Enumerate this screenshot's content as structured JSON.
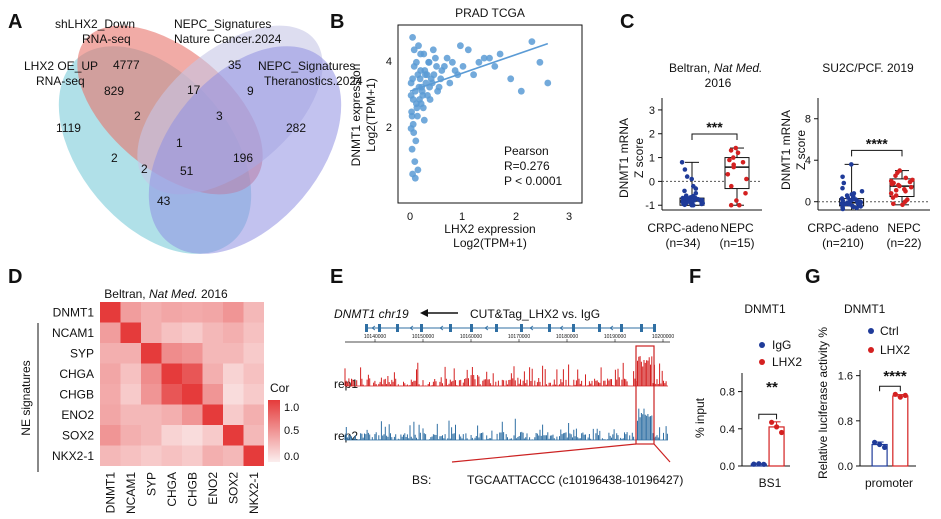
{
  "panels": {
    "A": {
      "label": "A",
      "sets": [
        "shLHX2_Down RNA-seq",
        "NEPC_Signatures Nature Cancer.2024",
        "LHX2 OE_UP RNA-seq",
        "NEPC_Signatures Theranostics.2024"
      ],
      "set_lines": [
        [
          "shLHX2_Down",
          "RNA-seq"
        ],
        [
          "NEPC_Signatures",
          "Nature Cancer.2024"
        ],
        [
          "LHX2 OE_UP",
          "RNA-seq"
        ],
        [
          "NEPC_Signatures",
          "Theranostics.2024"
        ]
      ],
      "set_colors": [
        "#e8736b",
        "#c6c6e6",
        "#6fc7d6",
        "#8f8fe2"
      ],
      "counts": [
        "4777",
        "35",
        "1119",
        "282",
        "829",
        "17",
        "9",
        "2",
        "3",
        "1",
        "196",
        "2",
        "2",
        "51",
        "43"
      ]
    },
    "B": {
      "label": "B",
      "title": "PRAD TCGA",
      "ylabel": [
        "DNMT1 expression",
        "Log2(TPM+1)"
      ],
      "xlabel": [
        "LHX2 expression",
        "Log2(TPM+1)"
      ],
      "xticks": [
        "0",
        "1",
        "2",
        "3"
      ],
      "yticks": [
        "2",
        "4"
      ],
      "stats": [
        "Pearson",
        "R=0.276",
        "P < 0.0001"
      ],
      "chart_data": {
        "type": "scatter",
        "title": "PRAD TCGA",
        "xlim": [
          0,
          3
        ],
        "ylim": [
          0.5,
          4.8
        ],
        "points_description_color": "#5b9bd5",
        "fit_line": {
          "x": [
            0,
            2.6
          ],
          "y": [
            3.2,
            4.35
          ]
        },
        "x": [
          0.02,
          0.03,
          0.05,
          0.06,
          0.08,
          0.1,
          0.12,
          0.15,
          0.18,
          0.2,
          0.22,
          0.25,
          0.28,
          0.3,
          0.33,
          0.36,
          0.4,
          0.45,
          0.5,
          0.55,
          0.6,
          0.7,
          0.8,
          0.9,
          1.0,
          1.1,
          1.3,
          1.5,
          1.7,
          1.9,
          2.1,
          2.3,
          2.45,
          2.6,
          0.04,
          0.07,
          0.09,
          0.11,
          0.14,
          0.17,
          0.21,
          0.24,
          0.27,
          0.32,
          0.38,
          0.42,
          0.48,
          0.52,
          0.58,
          0.65,
          0.75,
          0.85,
          0.95,
          1.2,
          1.4,
          1.6,
          0.05,
          0.08,
          0.12,
          0.16,
          0.2,
          0.26,
          0.35,
          0.44,
          0.05,
          0.1,
          0.15,
          0.02,
          0.06,
          0.13,
          0.19,
          0.23,
          0.29,
          0.37,
          0.02,
          0.04
        ],
        "y": [
          3.1,
          2.7,
          3.5,
          2.4,
          3.8,
          3.2,
          2.9,
          3.6,
          3.0,
          4.1,
          3.3,
          2.8,
          3.7,
          3.4,
          3.1,
          3.9,
          3.5,
          3.6,
          3.8,
          3.3,
          3.7,
          4.0,
          3.9,
          3.6,
          3.8,
          4.2,
          3.9,
          4.0,
          4.1,
          3.5,
          3.2,
          4.4,
          3.9,
          3.4,
          1.8,
          2.2,
          1.5,
          2.0,
          2.6,
          3.3,
          2.9,
          3.1,
          2.5,
          3.6,
          3.0,
          3.4,
          4.0,
          3.2,
          3.5,
          3.8,
          3.4,
          3.7,
          4.3,
          3.6,
          4.0,
          3.8,
          4.5,
          4.2,
          3.9,
          4.3,
          3.7,
          4.1,
          3.9,
          4.2,
          1.2,
          1.1,
          1.3,
          3.4,
          3.0,
          2.8,
          3.5,
          3.2,
          3.6,
          3.3,
          2.3,
          2.6
        ]
      }
    },
    "C": {
      "label": "C",
      "left": {
        "title": [
          "Beltran, ",
          "Nat Med.",
          "2016"
        ],
        "ylabel": [
          "DNMT1 mRNA",
          "Z score"
        ],
        "yticks": [
          "-1",
          "0",
          "1",
          "2",
          "3"
        ],
        "groups": [
          "CRPC-adeno",
          "NEPC"
        ],
        "ns": [
          "(n=34)",
          "(n=15)"
        ],
        "sig": "***",
        "chart_data": {
          "type": "box",
          "categories": [
            "CRPC-adeno",
            "NEPC"
          ],
          "ylim": [
            -1.2,
            3.5
          ],
          "box_colors": [
            "#1f3b99",
            "#d42020"
          ],
          "median": [
            -0.82,
            0.6
          ],
          "q1": [
            -1.0,
            -0.3
          ],
          "q3": [
            -0.7,
            1.0
          ],
          "whisker_min": [
            -1.0,
            -1.0
          ],
          "whisker_max": [
            0.8,
            1.4
          ],
          "points": [
            [
              -1,
              -1,
              -0.95,
              -0.9,
              -0.9,
              -0.85,
              -0.85,
              -0.8,
              -0.8,
              -0.8,
              -0.75,
              -0.75,
              -0.7,
              -0.7,
              -0.65,
              -0.6,
              -0.5,
              -0.4,
              -0.2,
              0.1,
              0.5,
              0.8,
              -0.95,
              -0.9,
              -0.88,
              -0.83,
              -0.78,
              -0.72,
              -0.68,
              -0.62,
              -0.3,
              0.2,
              -0.98,
              -0.92
            ],
            [
              1.4,
              1.3,
              1.2,
              1.0,
              0.9,
              0.8,
              0.7,
              0.6,
              0.3,
              0.1,
              -0.2,
              -0.5,
              -0.8,
              -1.0,
              -1.0
            ]
          ]
        }
      },
      "right": {
        "title": "SU2C/PCF. 2019",
        "ylabel": [
          "DNMT1 mRNA",
          "Z score"
        ],
        "yticks": [
          "0",
          "4",
          "8"
        ],
        "groups": [
          "CRPC-adeno",
          "NEPC"
        ],
        "ns": [
          "(n=210)",
          "(n=22)"
        ],
        "sig": "****",
        "chart_data": {
          "type": "box",
          "categories": [
            "CRPC-adeno",
            "NEPC"
          ],
          "ylim": [
            -0.8,
            10
          ],
          "box_colors": [
            "#1f3b99",
            "#d42020"
          ],
          "median": [
            -0.1,
            1.5
          ],
          "q1": [
            -0.4,
            0.5
          ],
          "q3": [
            0.3,
            2.2
          ],
          "whisker_min": [
            -0.8,
            -0.3
          ],
          "whisker_max": [
            3.6,
            3.0
          ],
          "points": [
            [
              -0.6,
              -0.5,
              -0.4,
              -0.4,
              -0.3,
              -0.3,
              -0.2,
              -0.2,
              -0.1,
              -0.1,
              0,
              0,
              0.1,
              0.1,
              0.2,
              0.3,
              0.4,
              0.6,
              0.8,
              1.0,
              1.3,
              1.8,
              2.4,
              3.6,
              -0.7,
              -0.55,
              -0.45,
              -0.35,
              -0.25,
              -0.15,
              -0.05,
              0.05,
              0.15,
              0.25,
              0.5,
              0.7
            ],
            [
              3.0,
              2.8,
              2.5,
              2.3,
              2.1,
              2.0,
              1.9,
              1.7,
              1.6,
              1.5,
              1.4,
              1.2,
              1.0,
              0.8,
              0.6,
              0.4,
              0.2,
              0,
              -0.2,
              -0.3,
              1.1,
              1.8
            ]
          ]
        }
      }
    },
    "D": {
      "label": "D",
      "title": [
        "Beltran, ",
        "Nat Med.",
        " 2016"
      ],
      "genes": [
        "DNMT1",
        "NCAM1",
        "SYP",
        "CHGA",
        "CHGB",
        "ENO2",
        "SOX2",
        "NKX2-1"
      ],
      "group_label": "NE signatures",
      "legend_title": "Cor",
      "legend_ticks": [
        "1.0",
        "0.5",
        "0.0"
      ],
      "chart_data": {
        "type": "heatmap",
        "rows": [
          "DNMT1",
          "NCAM1",
          "SYP",
          "CHGA",
          "CHGB",
          "ENO2",
          "SOX2",
          "NKX2-1"
        ],
        "cols": [
          "DNMT1",
          "NCAM1",
          "SYP",
          "CHGA",
          "CHGB",
          "ENO2",
          "SOX2",
          "NKX2-1"
        ],
        "scale": [
          0,
          1
        ],
        "values": [
          [
            1.0,
            0.45,
            0.35,
            0.4,
            0.38,
            0.4,
            0.5,
            0.3
          ],
          [
            0.45,
            1.0,
            0.35,
            0.25,
            0.2,
            0.3,
            0.35,
            0.25
          ],
          [
            0.35,
            0.35,
            1.0,
            0.55,
            0.5,
            0.3,
            0.3,
            0.2
          ],
          [
            0.4,
            0.25,
            0.55,
            1.0,
            0.85,
            0.35,
            0.15,
            0.25
          ],
          [
            0.38,
            0.2,
            0.5,
            0.85,
            1.0,
            0.5,
            0.1,
            0.2
          ],
          [
            0.4,
            0.3,
            0.3,
            0.35,
            0.5,
            1.0,
            0.2,
            0.35
          ],
          [
            0.5,
            0.35,
            0.3,
            0.15,
            0.1,
            0.2,
            1.0,
            0.3
          ],
          [
            0.3,
            0.25,
            0.2,
            0.25,
            0.2,
            0.35,
            0.3,
            1.0
          ]
        ]
      }
    },
    "E": {
      "label": "E",
      "gene": "DNMT1 chr19",
      "assay": "CUT&Tag_LHX2 vs. IgG",
      "coords": [
        "10140000",
        "10150000",
        "10160000",
        "10170000",
        "10180000",
        "10190000",
        "10200000"
      ],
      "tracks": [
        "rep1",
        "rep2"
      ],
      "track_colors": [
        "#d42020",
        "#2f6fa3"
      ],
      "bs_label": "BS:",
      "bs_seq": "TGCAATTACCC (c10196438-10196427)"
    },
    "F": {
      "label": "F",
      "title": "DNMT1",
      "ylabel": "% input",
      "yticks": [
        "0.0",
        "0.4",
        "0.8"
      ],
      "xlabel": "BS1",
      "legend": [
        "IgG",
        "LHX2"
      ],
      "sig": "**",
      "chart_data": {
        "type": "bar",
        "categories": [
          "BS1"
        ],
        "series": [
          {
            "name": "IgG",
            "values": [
              0.02
            ],
            "points": [
              0.02,
              0.025,
              0.018
            ],
            "color": "#1f3b99"
          },
          {
            "name": "LHX2",
            "values": [
              0.42
            ],
            "points": [
              0.47,
              0.42,
              0.36
            ],
            "color": "#d42020"
          }
        ],
        "ylim": [
          0,
          1.0
        ]
      }
    },
    "G": {
      "label": "G",
      "title": "DNMT1",
      "ylabel": "Relative luciferase activity %",
      "yticks": [
        "0.0",
        "0.8",
        "1.6"
      ],
      "xlabel": "promoter",
      "legend": [
        "Ctrl",
        "LHX2"
      ],
      "sig": "****",
      "chart_data": {
        "type": "bar",
        "categories": [
          "promoter"
        ],
        "series": [
          {
            "name": "Ctrl",
            "values": [
              0.38
            ],
            "points": [
              0.42,
              0.38,
              0.33
            ],
            "color": "#1f3b99"
          },
          {
            "name": "LHX2",
            "values": [
              1.24
            ],
            "points": [
              1.27,
              1.22,
              1.25
            ],
            "color": "#d42020"
          }
        ],
        "ylim": [
          0,
          1.7
        ]
      }
    }
  }
}
